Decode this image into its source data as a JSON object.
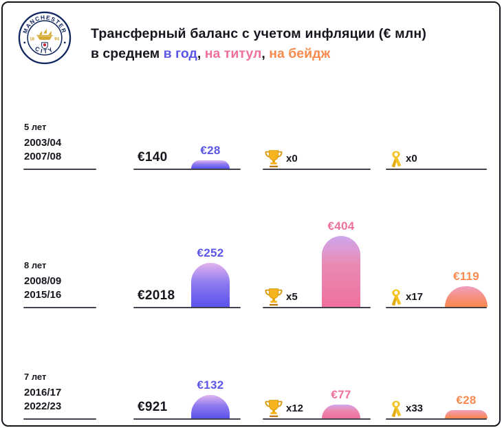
{
  "header": {
    "title": "Трансферный баланс с учетом инфляции (€ млн)",
    "subtitle_prefix": "в среднем",
    "comma": ",",
    "legend": [
      {
        "label": "в год",
        "color": "#5b55e8"
      },
      {
        "label": "на титул",
        "color": "#ef709f"
      },
      {
        "label": "на бейдж",
        "color": "#f88b4e"
      }
    ],
    "logo": {
      "top_text": "MANCHESTER",
      "bottom_text": "CITY",
      "year_left": "18",
      "year_right": "94"
    }
  },
  "colors": {
    "text": "#16161f",
    "per_year": "#5b55e8",
    "per_title": "#ef709f",
    "per_badge": "#f88b4e",
    "bar_blue_top": "#e2b4ee",
    "bar_blue_bottom": "#5a52ec",
    "bar_pink_top": "#cfa7ec",
    "bar_pink_bottom": "#ef6f9d",
    "bar_orange_top": "#f19fc0",
    "bar_orange_bottom": "#f8894f",
    "trophy_gold": "#f6b51e",
    "ribbon_yellow": "#f3c223"
  },
  "chart_data": {
    "type": "bar",
    "title": "Трансферный баланс с учетом инфляции (€ млн)",
    "subtitle": "в среднем в год, на титул, на бейдж",
    "unit": "€ млн",
    "series_legend": [
      "в год",
      "на титул",
      "на бейдж"
    ],
    "rows": [
      {
        "duration": "5 лет",
        "from": "2003/04",
        "to": "2007/08",
        "total_label": "€140",
        "total": 140,
        "per_year": {
          "label": "€28",
          "value": 28
        },
        "titles": {
          "count_label": "x0",
          "count": 0,
          "per_title_label": "",
          "per_title": null
        },
        "badges": {
          "count_label": "x0",
          "count": 0,
          "per_badge_label": "",
          "per_badge": null
        }
      },
      {
        "duration": "8 лет",
        "from": "2008/09",
        "to": "2015/16",
        "total_label": "€2018",
        "total": 2018,
        "per_year": {
          "label": "€252",
          "value": 252
        },
        "titles": {
          "count_label": "x5",
          "count": 5,
          "per_title_label": "€404",
          "per_title": 404
        },
        "badges": {
          "count_label": "x17",
          "count": 17,
          "per_badge_label": "€119",
          "per_badge": 119
        }
      },
      {
        "duration": "7 лет",
        "from": "2016/17",
        "to": "2022/23",
        "total_label": "€921",
        "total": 921,
        "per_year": {
          "label": "€132",
          "value": 132
        },
        "titles": {
          "count_label": "x12",
          "count": 12,
          "per_title_label": "€77",
          "per_title": 77
        },
        "badges": {
          "count_label": "x33",
          "count": 33,
          "per_badge_label": "€28",
          "per_badge": 28
        }
      }
    ]
  }
}
